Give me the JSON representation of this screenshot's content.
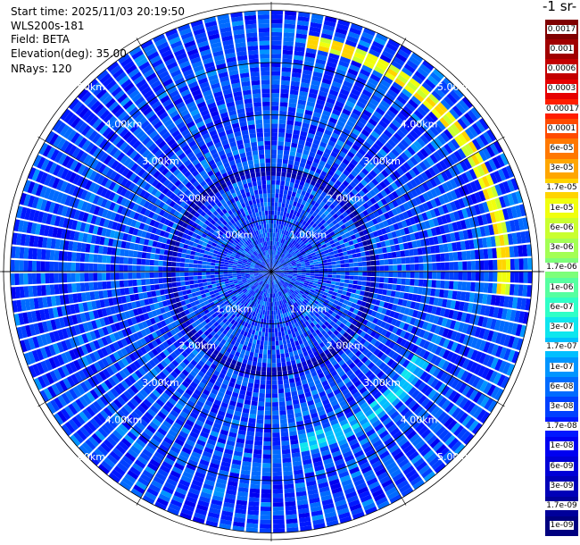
{
  "info": {
    "start_time": "Start time: 2025/11/03 20:19:50",
    "device": "WLS200s-181",
    "field": "Field: BETA",
    "elevation": "Elevation(deg): 35.00",
    "nrays": "NRays: 120"
  },
  "colorbar": {
    "title": "-1 sr-",
    "labels": [
      "0.0017",
      "0.001",
      "0.0006",
      "0.0003",
      "0.00017",
      "0.0001",
      "6e-05",
      "3e-05",
      "1.7e-05",
      "1e-05",
      "6e-06",
      "3e-06",
      "1.7e-06",
      "1e-06",
      "6e-07",
      "3e-07",
      "1.7e-07",
      "1e-07",
      "6e-08",
      "3e-08",
      "1.7e-08",
      "1e-08",
      "6e-09",
      "3e-09",
      "1.7e-09",
      "1e-09"
    ],
    "colors": [
      "#7f0000",
      "#a00000",
      "#c30000",
      "#e60000",
      "#ff1e00",
      "#ff4b00",
      "#ff7800",
      "#ffa600",
      "#ffd400",
      "#f0ff0e",
      "#c9ff2f",
      "#a3ff54",
      "#7dff7a",
      "#56ffa0",
      "#2fffc7",
      "#0ee6ee",
      "#00bfff",
      "#0095ff",
      "#006bff",
      "#0040ff",
      "#0018ff",
      "#0000f1",
      "#0000d6",
      "#0000b8",
      "#00009a",
      "#00007f"
    ]
  },
  "chart_data": {
    "type": "heatmap",
    "projection": "polar PPI",
    "field": "BETA",
    "elevation_deg": 35.0,
    "n_rays": 120,
    "range_rings_km": [
      1,
      2,
      3,
      4,
      5
    ],
    "ring_labels": [
      "1.00km",
      "2.00km",
      "3.00km",
      "4.00km",
      "5.00km"
    ],
    "max_range_km": 5.0,
    "color_scale": "log",
    "value_range": [
      1e-09,
      0.0017
    ],
    "features": [
      {
        "description": "stronger return arc",
        "azimuth_deg": [
          10,
          95
        ],
        "range_km": [
          4.3,
          4.6
        ],
        "value": 1e-05
      },
      {
        "description": "moderate arc",
        "azimuth_deg": [
          120,
          170
        ],
        "range_km": [
          3.2,
          3.5
        ],
        "value": 1.7e-07
      },
      {
        "description": "weaker ring",
        "azimuth_deg": [
          0,
          360
        ],
        "range_km": [
          1.85,
          2.0
        ],
        "value": 3e-09
      }
    ],
    "background_value": 3e-08
  }
}
